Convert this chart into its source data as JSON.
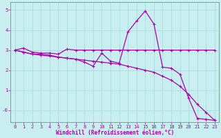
{
  "xlabel": "Windchill (Refroidissement éolien,°C)",
  "background_color": "#c8eef0",
  "grid_color": "#aadddd",
  "line_color": "#aa00aa",
  "spine_color": "#888888",
  "xlim": [
    -0.5,
    23.5
  ],
  "ylim": [
    -0.6,
    5.4
  ],
  "yticks": [
    0,
    1,
    2,
    3,
    4,
    5
  ],
  "ytick_labels": [
    "-0",
    "1",
    "2",
    "3",
    "4",
    "5"
  ],
  "xticks": [
    0,
    1,
    2,
    3,
    4,
    5,
    6,
    7,
    8,
    9,
    10,
    11,
    12,
    13,
    14,
    15,
    16,
    17,
    18,
    19,
    20,
    21,
    22,
    23
  ],
  "line1_x": [
    0,
    1,
    2,
    3,
    4,
    5,
    6,
    7,
    8,
    9,
    10,
    11,
    12,
    13,
    14,
    15,
    16,
    17,
    18,
    19,
    20,
    21,
    22,
    23
  ],
  "line1_y": [
    3.0,
    3.1,
    2.9,
    2.85,
    2.85,
    2.8,
    3.05,
    3.0,
    3.0,
    3.0,
    3.0,
    3.0,
    3.0,
    3.0,
    3.0,
    3.0,
    3.0,
    3.0,
    3.0,
    3.0,
    3.0,
    3.0,
    3.0,
    3.0
  ],
  "line2_x": [
    0,
    1,
    2,
    3,
    4,
    5,
    6,
    7,
    8,
    9,
    10,
    11,
    12,
    13,
    14,
    15,
    16,
    17,
    18,
    19,
    20,
    21,
    22,
    23
  ],
  "line2_y": [
    3.0,
    2.9,
    2.8,
    2.8,
    2.75,
    2.65,
    2.6,
    2.55,
    2.4,
    2.2,
    2.85,
    2.45,
    2.35,
    3.9,
    4.45,
    4.95,
    4.3,
    2.15,
    2.1,
    1.8,
    0.6,
    -0.4,
    -0.45,
    -0.5
  ],
  "line3_x": [
    0,
    1,
    2,
    3,
    4,
    5,
    6,
    7,
    8,
    9,
    10,
    11,
    12,
    13,
    14,
    15,
    16,
    17,
    18,
    19,
    20,
    21,
    22,
    23
  ],
  "line3_y": [
    3.0,
    2.9,
    2.8,
    2.75,
    2.7,
    2.65,
    2.6,
    2.55,
    2.5,
    2.45,
    2.4,
    2.35,
    2.3,
    2.2,
    2.1,
    2.0,
    1.9,
    1.7,
    1.5,
    1.2,
    0.8,
    0.3,
    -0.1,
    -0.5
  ],
  "tick_fontsize": 5.0,
  "xlabel_fontsize": 5.5,
  "marker_size": 3,
  "line_width": 0.9
}
